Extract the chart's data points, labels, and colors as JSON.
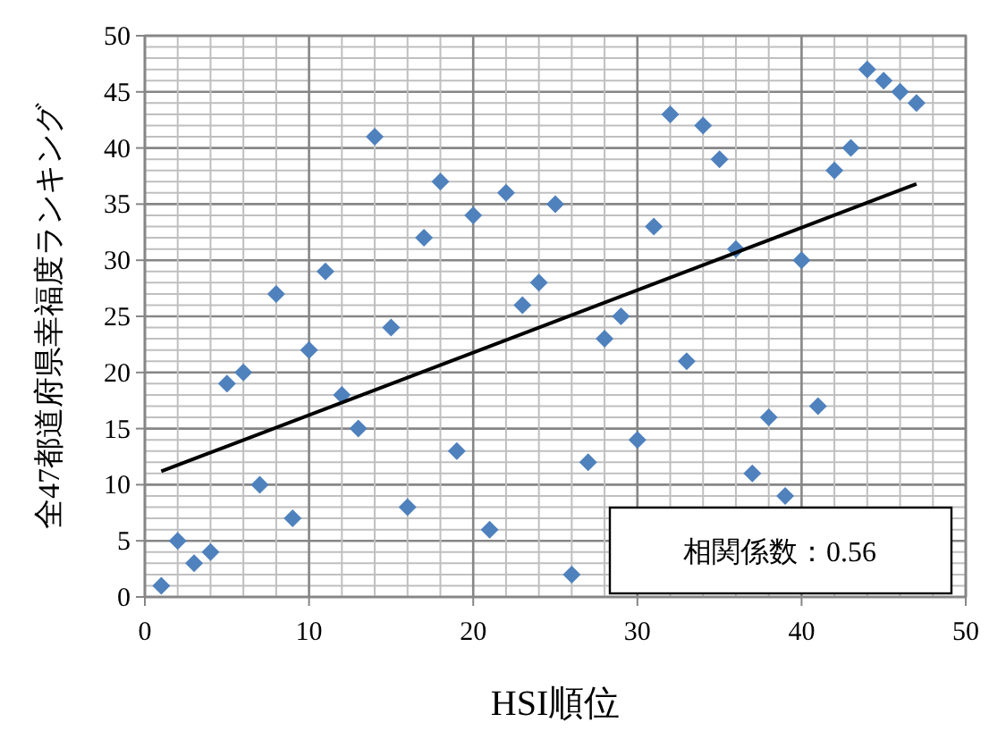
{
  "chart_data": {
    "type": "scatter",
    "xlabel": "HSI順位",
    "ylabel": "全47都道府県幸福度ランキング",
    "xlim": [
      0,
      50
    ],
    "ylim": [
      0,
      50
    ],
    "xticks": [
      0,
      10,
      20,
      30,
      40,
      50
    ],
    "yticks": [
      0,
      5,
      10,
      15,
      20,
      25,
      30,
      35,
      40,
      45,
      50
    ],
    "grid": true,
    "annotations": [
      "相関係数：0.56"
    ],
    "series": [
      {
        "marker": "diamond",
        "color": "#4f81bd",
        "x": [
          1,
          2,
          3,
          4,
          5,
          6,
          7,
          8,
          9,
          10,
          11,
          12,
          13,
          14,
          15,
          16,
          17,
          18,
          19,
          20,
          21,
          22,
          23,
          24,
          25,
          26,
          27,
          28,
          29,
          30,
          31,
          32,
          33,
          34,
          35,
          36,
          37,
          38,
          39,
          40,
          41,
          42,
          43,
          44,
          45,
          46,
          47
        ],
        "values": [
          1,
          5,
          3,
          4,
          19,
          20,
          10,
          27,
          7,
          22,
          29,
          18,
          15,
          41,
          24,
          8,
          32,
          37,
          13,
          34,
          6,
          36,
          26,
          28,
          35,
          2,
          12,
          23,
          25,
          14,
          33,
          43,
          21,
          42,
          39,
          31,
          11,
          16,
          9,
          30,
          17,
          38,
          40,
          47,
          46,
          45,
          44
        ]
      },
      {
        "type": "line",
        "color": "#000000",
        "x": [
          1,
          47
        ],
        "values": [
          11.2,
          36.8
        ]
      }
    ]
  }
}
